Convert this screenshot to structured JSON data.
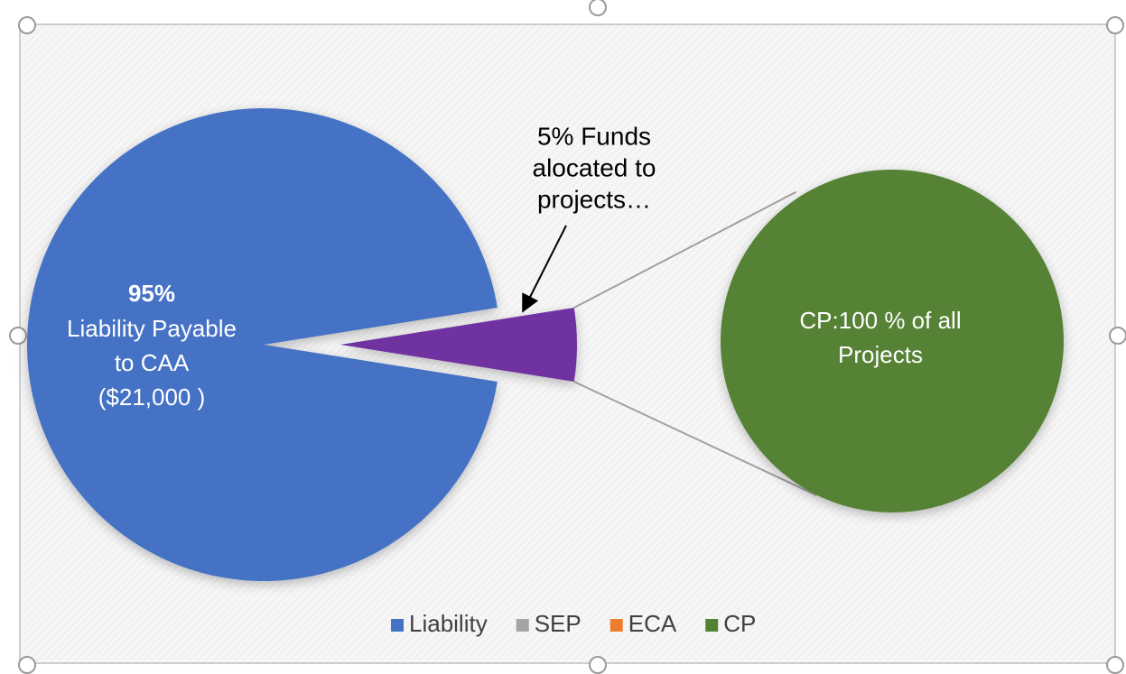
{
  "chart_data": {
    "type": "pie-of-pie",
    "categories": [
      "Liability",
      "SEP",
      "ECA",
      "CP"
    ],
    "values": [
      95,
      0,
      0,
      5
    ],
    "colors": [
      "#4472c4",
      "#a5a5a5",
      "#ed7d31",
      "#548235"
    ],
    "split_color": "#7030a0",
    "liability_label": {
      "percent": "95%",
      "lines": [
        "Liability Payable",
        "to CAA",
        "($21,000  )"
      ]
    },
    "secondary": {
      "values": [
        100
      ],
      "label_lines": [
        "CP:100 % of all",
        "Projects"
      ]
    },
    "annotation": [
      "5% Funds",
      "alocated to",
      "projects…"
    ],
    "legend": "bottom"
  }
}
